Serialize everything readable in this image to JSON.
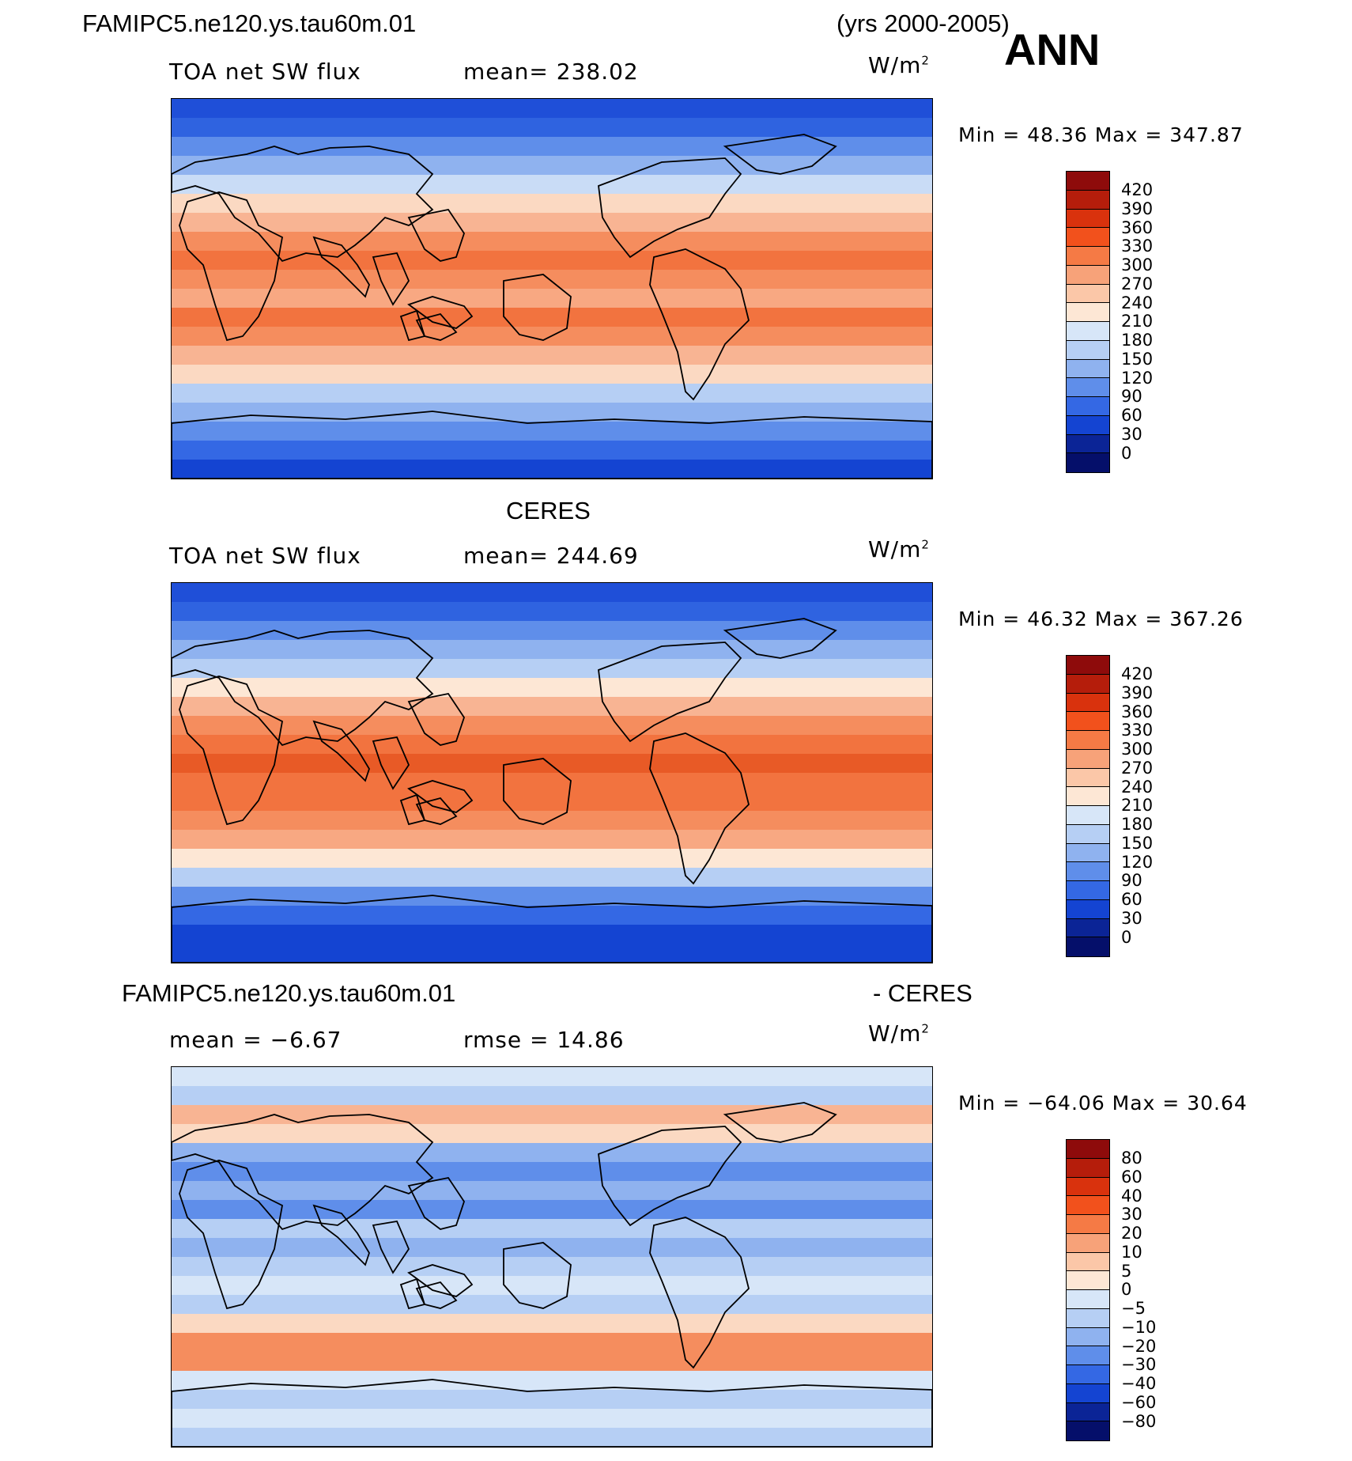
{
  "header": {
    "case_name": "FAMIPC5.ne120.ys.tau60m.01",
    "years": "(yrs 2000-2005)",
    "season": "ANN"
  },
  "panels": [
    {
      "id": "model",
      "title": "",
      "variable": "TOA net SW flux",
      "stat_text": "mean=  238.02",
      "units_base": "W/m",
      "units_exp": "2",
      "minmax_text": "Min  =   48.36  Max  =  347.87",
      "colorbar_labels": [
        "420",
        "390",
        "360",
        "330",
        "300",
        "270",
        "240",
        "210",
        "180",
        "150",
        "120",
        "90",
        "60",
        "30",
        "0"
      ],
      "colorbar_colors": [
        "#8e0b0b",
        "#b51d0b",
        "#d9320d",
        "#f2511c",
        "#f57a45",
        "#f7a279",
        "#fbc7a8",
        "#fde7d5",
        "#d7e6f8",
        "#b6cff4",
        "#8fb2ef",
        "#5f8eea",
        "#3468e4",
        "#1444d2",
        "#0b2496",
        "#050f6a"
      ],
      "map_stops": [
        "#1f4fd8",
        "#2f63e0",
        "#5f8eea",
        "#8fb2ef",
        "#c9dcf6",
        "#fbd9c2",
        "#f8b493",
        "#f58d5e",
        "#f2733f",
        "#f58d5e",
        "#f8a882",
        "#f2733f",
        "#f58d5e",
        "#f8b493",
        "#fbd9c2",
        "#b6cff4",
        "#8fb2ef",
        "#5f8eea",
        "#3468e4",
        "#1444d2"
      ]
    },
    {
      "id": "obs",
      "title": "CERES",
      "variable": "TOA net SW flux",
      "stat_text": "mean=  244.69",
      "units_base": "W/m",
      "units_exp": "2",
      "minmax_text": "Min  =   46.32  Max  =  367.26",
      "colorbar_labels": [
        "420",
        "390",
        "360",
        "330",
        "300",
        "270",
        "240",
        "210",
        "180",
        "150",
        "120",
        "90",
        "60",
        "30",
        "0"
      ],
      "colorbar_colors": [
        "#8e0b0b",
        "#b51d0b",
        "#d9320d",
        "#f2511c",
        "#f57a45",
        "#f7a279",
        "#fbc7a8",
        "#fde7d5",
        "#d7e6f8",
        "#b6cff4",
        "#8fb2ef",
        "#5f8eea",
        "#3468e4",
        "#1444d2",
        "#0b2496",
        "#050f6a"
      ],
      "map_stops": [
        "#1f4fd8",
        "#2f63e0",
        "#5f8eea",
        "#8fb2ef",
        "#b6cff4",
        "#fde7d5",
        "#f8b493",
        "#f58d5e",
        "#f2733f",
        "#e85a26",
        "#f2733f",
        "#f2733f",
        "#f58d5e",
        "#f8a882",
        "#fde7d5",
        "#b6cff4",
        "#5f8eea",
        "#3468e4",
        "#1444d2",
        "#1444d2"
      ]
    },
    {
      "id": "diff",
      "title_left": "FAMIPC5.ne120.ys.tau60m.01",
      "title_right": "- CERES",
      "variable": "mean  =   −6.67",
      "stat_text": "rmse  =    14.86",
      "units_base": "W/m",
      "units_exp": "2",
      "minmax_text": "Min  = −64.06  Max  =   30.64",
      "colorbar_labels": [
        "80",
        "60",
        "40",
        "30",
        "20",
        "10",
        "5",
        "0",
        "−5",
        "−10",
        "−20",
        "−30",
        "−40",
        "−60",
        "−80"
      ],
      "colorbar_colors": [
        "#8e0b0b",
        "#b51d0b",
        "#d9320d",
        "#f2511c",
        "#f57a45",
        "#f7a279",
        "#fbc7a8",
        "#fde7d5",
        "#d7e6f8",
        "#b6cff4",
        "#8fb2ef",
        "#5f8eea",
        "#3468e4",
        "#1444d2",
        "#0b2496",
        "#050f6a"
      ],
      "map_stops": [
        "#d7e6f8",
        "#b6cff4",
        "#f8b493",
        "#fbd9c2",
        "#8fb2ef",
        "#5f8eea",
        "#8fb2ef",
        "#5f8eea",
        "#b6cff4",
        "#8fb2ef",
        "#b6cff4",
        "#d7e6f8",
        "#b6cff4",
        "#fbd9c2",
        "#f58d5e",
        "#f58d5e",
        "#d7e6f8",
        "#b6cff4",
        "#d7e6f8",
        "#b6cff4"
      ]
    }
  ]
}
